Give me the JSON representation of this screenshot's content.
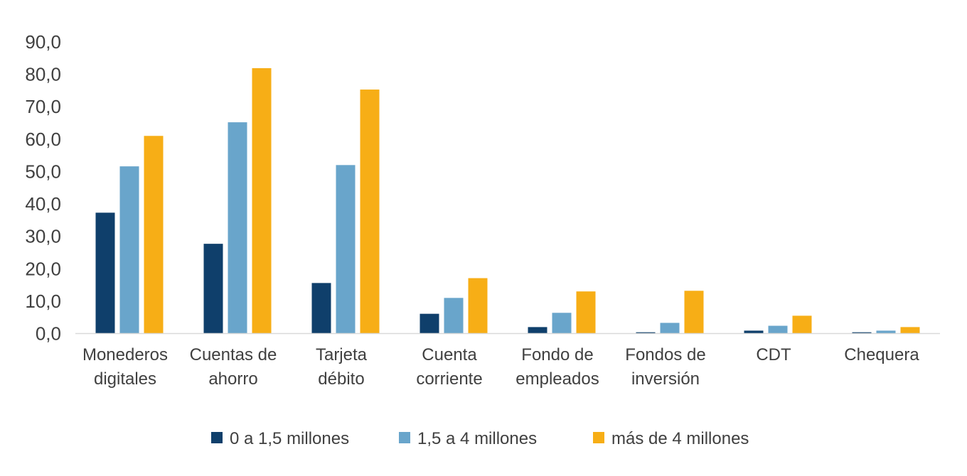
{
  "chart_data": {
    "type": "bar",
    "title": "",
    "xlabel": "",
    "ylabel": "",
    "ylim": [
      0,
      90
    ],
    "yticks": [
      "0,0",
      "10,0",
      "20,0",
      "30,0",
      "40,0",
      "50,0",
      "60,0",
      "70,0",
      "80,0",
      "90,0"
    ],
    "grid": false,
    "legend_position": "bottom",
    "categories": [
      [
        "Monederos",
        "digitales"
      ],
      [
        "Cuentas de",
        "ahorro"
      ],
      [
        "Tarjeta",
        "débito"
      ],
      [
        "Cuenta",
        "corriente"
      ],
      [
        "Fondo de",
        "empleados"
      ],
      [
        "Fondos de",
        "inversión"
      ],
      [
        "CDT"
      ],
      [
        "Chequera"
      ]
    ],
    "series": [
      {
        "name": "0 a 1,5 millones",
        "color": "#0f3f6b",
        "values": [
          37.3,
          27.7,
          15.6,
          6.1,
          2.0,
          0.4,
          0.9,
          0.4
        ]
      },
      {
        "name": "1,5 a 4 millones",
        "color": "#69a5cb",
        "values": [
          51.6,
          65.2,
          52.0,
          11.0,
          6.4,
          3.3,
          2.4,
          0.9
        ]
      },
      {
        "name": "más de 4 millones",
        "color": "#f7ae16",
        "values": [
          61.0,
          81.9,
          75.3,
          17.1,
          13.0,
          13.2,
          5.5,
          2.0
        ]
      }
    ]
  }
}
